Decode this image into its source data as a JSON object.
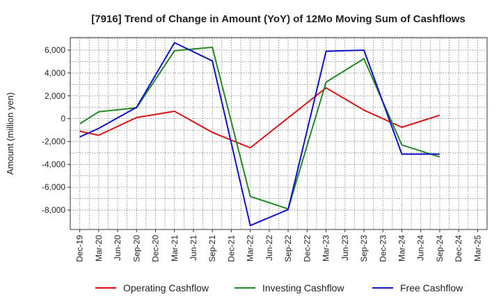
{
  "chart_data": {
    "type": "line",
    "title": "[7916]  Trend of Change in Amount (YoY) of 12Mo Moving Sum of Cashflows",
    "xlabel": "",
    "ylabel": "Amount (million yen)",
    "categories": [
      "Dec-19",
      "Mar-20",
      "Jun-20",
      "Sep-20",
      "Dec-20",
      "Mar-21",
      "Jun-21",
      "Sep-21",
      "Dec-21",
      "Mar-22",
      "Jun-22",
      "Sep-22",
      "Dec-22",
      "Mar-23",
      "Jun-23",
      "Sep-23",
      "Dec-23",
      "Mar-24",
      "Jun-24",
      "Sep-24",
      "Dec-24",
      "Mar-25"
    ],
    "ylim": [
      -9700,
      7100
    ],
    "yticks": [
      -8000,
      -6000,
      -4000,
      -2000,
      0,
      2000,
      4000,
      6000
    ],
    "ytick_labels": [
      "-8,000",
      "-6,000",
      "-4,000",
      "-2,000",
      "0",
      "2,000",
      "4,000",
      "6,000"
    ],
    "grid": true,
    "legend_position": "bottom",
    "series": [
      {
        "name": "Operating Cashflow",
        "color": "#dd1111",
        "values": [
          -1100,
          -1450,
          null,
          100,
          null,
          650,
          null,
          -1200,
          null,
          -2550,
          null,
          null,
          null,
          2700,
          null,
          750,
          null,
          -750,
          null,
          300,
          null,
          null
        ]
      },
      {
        "name": "Investing Cashflow",
        "color": "#228822",
        "values": [
          -450,
          600,
          null,
          950,
          null,
          5950,
          null,
          6250,
          null,
          -6800,
          null,
          -7900,
          null,
          3200,
          null,
          5250,
          null,
          -2300,
          null,
          -3350,
          null,
          null
        ]
      },
      {
        "name": "Free Cashflow",
        "color": "#1111cc",
        "values": [
          -1600,
          -850,
          null,
          1000,
          null,
          6650,
          null,
          5050,
          null,
          -9350,
          null,
          -7950,
          null,
          5900,
          null,
          6000,
          null,
          -3100,
          null,
          -3100,
          null,
          null
        ]
      }
    ]
  }
}
